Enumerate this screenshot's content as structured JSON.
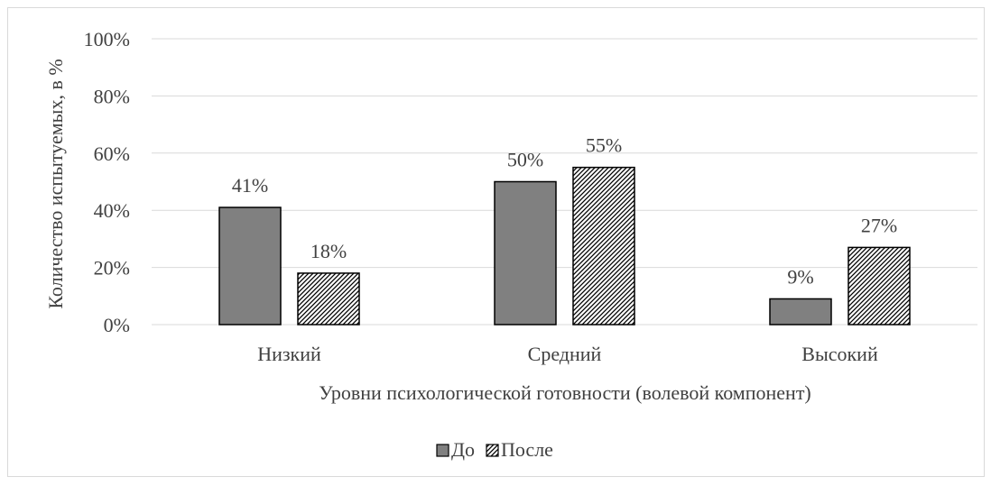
{
  "chart_data": {
    "type": "bar",
    "categories": [
      "Низкий",
      "Средний",
      "Высокий"
    ],
    "series": [
      {
        "name": "До",
        "values": [
          41,
          50,
          9
        ],
        "value_labels": [
          "41%",
          "50%",
          "9%"
        ],
        "fill": "#808080"
      },
      {
        "name": "После",
        "values": [
          18,
          55,
          27
        ],
        "value_labels": [
          "18%",
          "55%",
          "27%"
        ],
        "fill": "hatch"
      }
    ],
    "xlabel": "Уровни психологической готовности (волевой компонент)",
    "ylabel": "Количество испытуемых, в %",
    "ylim": [
      0,
      100
    ],
    "y_ticks": [
      0,
      20,
      40,
      60,
      80,
      100
    ],
    "y_tick_labels": [
      "0%",
      "20%",
      "40%",
      "60%",
      "80%",
      "100%"
    ],
    "grid": true,
    "legend_position": "bottom",
    "colors": {
      "bar_dark": "#808080",
      "grid": "#d9d9d9",
      "text": "#404040",
      "border": "#000000"
    }
  }
}
